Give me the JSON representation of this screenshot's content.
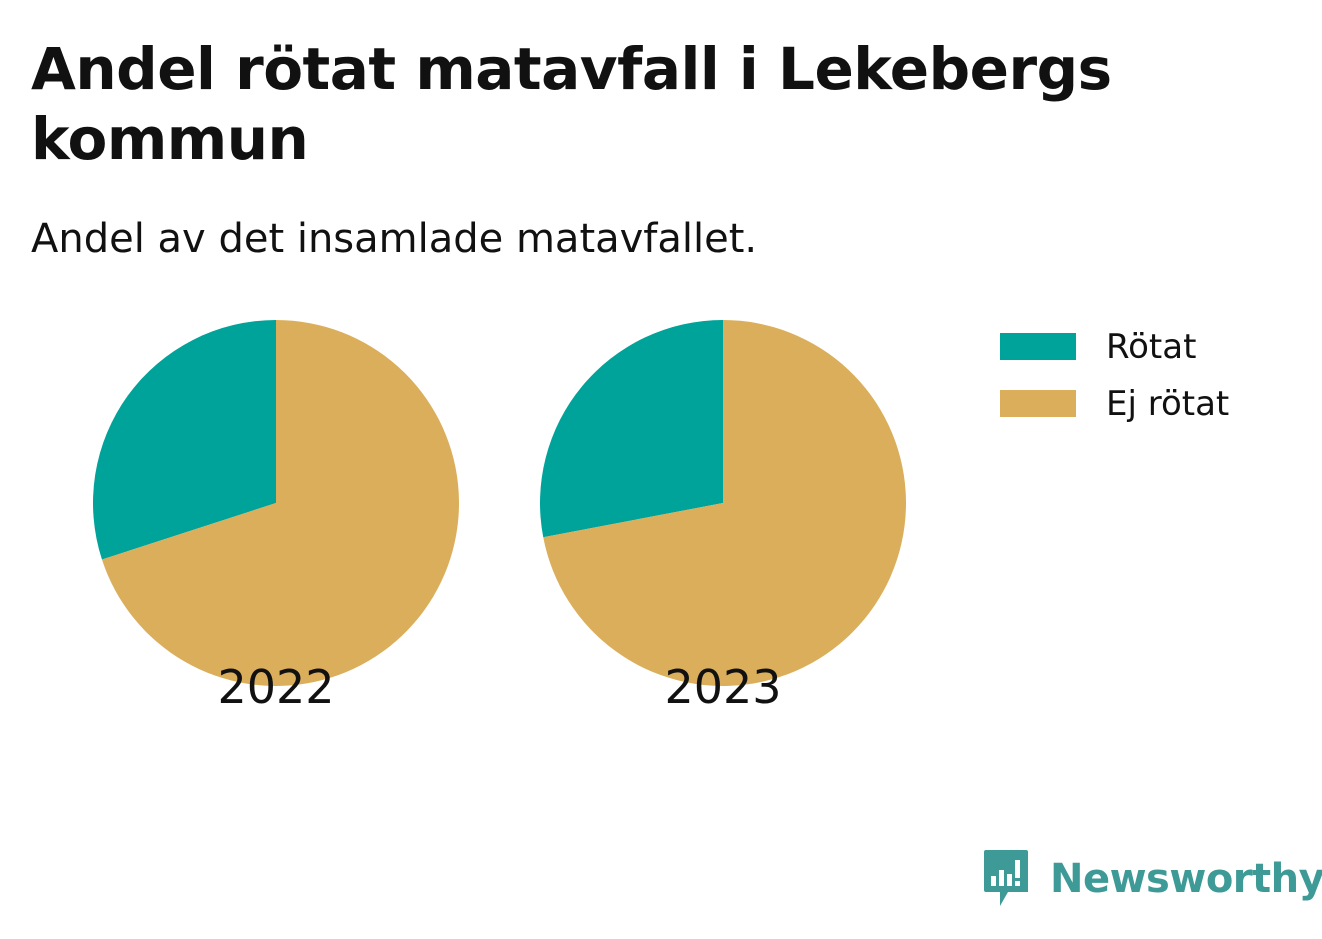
{
  "title": "Andel rötat matavfall i Lekebergs kommun",
  "subtitle": "Andel av det insamlade matavfallet.",
  "colors": {
    "rotat": "#00a39a",
    "ej_rotat": "#dbae5b",
    "brand": "#3e9a96"
  },
  "legend": [
    {
      "label": "Rötat",
      "color": "#00a39a"
    },
    {
      "label": "Ej rötat",
      "color": "#dbae5b"
    }
  ],
  "chart_data": {
    "type": "pie",
    "title": "Andel rötat matavfall i Lekebergs kommun",
    "subtitle": "Andel av det insamlade matavfallet.",
    "categories": [
      "Rötat",
      "Ej rötat"
    ],
    "series": [
      {
        "name": "2022",
        "values": [
          30,
          70
        ]
      },
      {
        "name": "2023",
        "values": [
          28,
          72
        ]
      }
    ],
    "legend_position": "top-right"
  },
  "brand": {
    "name": "Newsworthy",
    "icon": "newsworthy-logo-icon"
  }
}
